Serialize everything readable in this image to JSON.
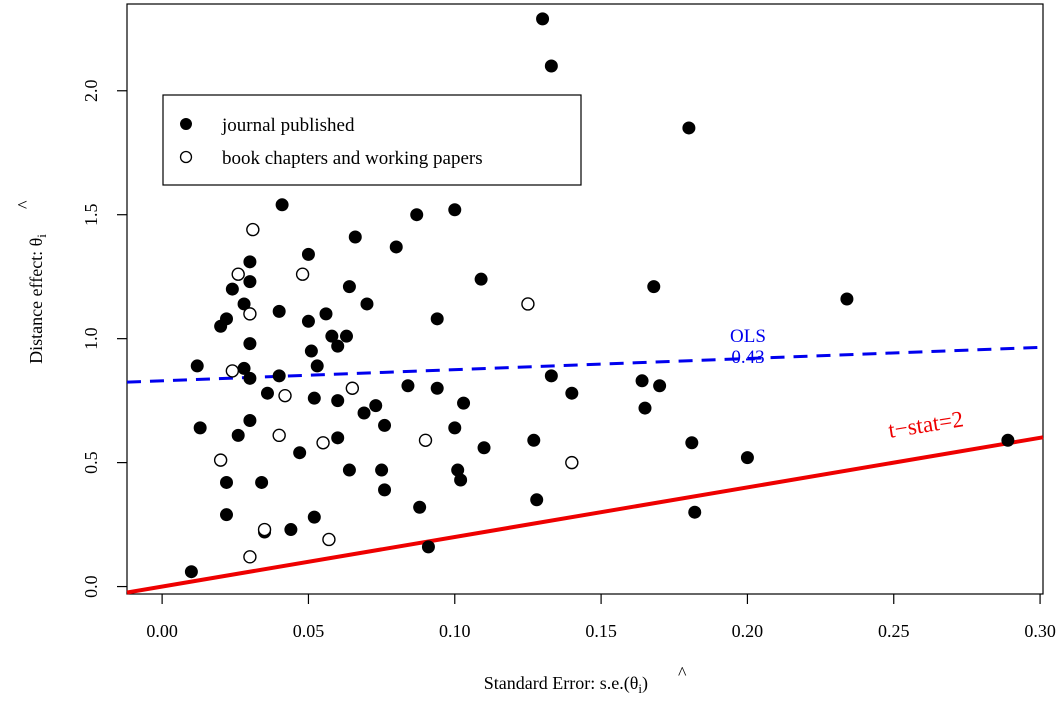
{
  "chart_data": {
    "type": "scatter",
    "xlabel": "Standard Error:   s.e.(",
    "xlabel_theta": "θ",
    "xlabel_hat": "^",
    "xlabel_sub": "i",
    "xlabel_close": ")",
    "ylabel": "Distance effect:  ",
    "ylabel_theta": "θ",
    "ylabel_hat": "^",
    "ylabel_sub": "i",
    "xlim": [
      -0.012,
      0.301
    ],
    "ylim": [
      -0.03,
      2.35
    ],
    "x_ticks": [
      0.0,
      0.05,
      0.1,
      0.15,
      0.2,
      0.25,
      0.3
    ],
    "x_tick_labels": [
      "0.00",
      "0.05",
      "0.10",
      "0.15",
      "0.20",
      "0.25",
      "0.30"
    ],
    "y_ticks": [
      0.0,
      0.5,
      1.0,
      1.5,
      2.0
    ],
    "y_tick_labels": [
      "0.0",
      "0.5",
      "1.0",
      "1.5",
      "2.0"
    ],
    "grid": false,
    "legend": {
      "position": "top-left",
      "entries": [
        {
          "label": "journal published",
          "marker": "filled-circle"
        },
        {
          "label": "book chapters and working papers",
          "marker": "open-circle"
        }
      ]
    },
    "lines": [
      {
        "name": "OLS",
        "label": "OLS",
        "sublabel": "0.43",
        "style": "dashed",
        "color": "#0000ee",
        "intercept": 0.83,
        "slope": 0.45
      },
      {
        "name": "t-stat=2",
        "label": "t−stat=2",
        "style": "solid",
        "color": "#ee0000",
        "intercept": 0.0,
        "slope": 2.0
      }
    ],
    "series": [
      {
        "name": "journal published",
        "marker": "filled",
        "points": [
          [
            0.13,
            2.29
          ],
          [
            0.133,
            2.1
          ],
          [
            0.18,
            1.85
          ],
          [
            0.041,
            1.54
          ],
          [
            0.1,
            1.52
          ],
          [
            0.087,
            1.5
          ],
          [
            0.08,
            1.37
          ],
          [
            0.066,
            1.41
          ],
          [
            0.05,
            1.34
          ],
          [
            0.03,
            1.31
          ],
          [
            0.03,
            1.23
          ],
          [
            0.024,
            1.2
          ],
          [
            0.028,
            1.14
          ],
          [
            0.022,
            1.08
          ],
          [
            0.02,
            1.05
          ],
          [
            0.04,
            1.11
          ],
          [
            0.05,
            1.07
          ],
          [
            0.056,
            1.1
          ],
          [
            0.064,
            1.21
          ],
          [
            0.07,
            1.14
          ],
          [
            0.058,
            1.01
          ],
          [
            0.063,
            1.01
          ],
          [
            0.06,
            0.97
          ],
          [
            0.051,
            0.95
          ],
          [
            0.03,
            0.98
          ],
          [
            0.012,
            0.89
          ],
          [
            0.028,
            0.88
          ],
          [
            0.03,
            0.84
          ],
          [
            0.04,
            0.85
          ],
          [
            0.053,
            0.89
          ],
          [
            0.036,
            0.78
          ],
          [
            0.052,
            0.76
          ],
          [
            0.06,
            0.75
          ],
          [
            0.073,
            0.73
          ],
          [
            0.069,
            0.7
          ],
          [
            0.076,
            0.65
          ],
          [
            0.084,
            0.81
          ],
          [
            0.094,
            0.8
          ],
          [
            0.094,
            1.08
          ],
          [
            0.109,
            1.24
          ],
          [
            0.133,
            0.85
          ],
          [
            0.14,
            0.78
          ],
          [
            0.103,
            0.74
          ],
          [
            0.013,
            0.64
          ],
          [
            0.026,
            0.61
          ],
          [
            0.03,
            0.67
          ],
          [
            0.06,
            0.6
          ],
          [
            0.047,
            0.54
          ],
          [
            0.064,
            0.47
          ],
          [
            0.075,
            0.47
          ],
          [
            0.1,
            0.64
          ],
          [
            0.101,
            0.47
          ],
          [
            0.102,
            0.43
          ],
          [
            0.11,
            0.56
          ],
          [
            0.127,
            0.59
          ],
          [
            0.164,
            0.83
          ],
          [
            0.165,
            0.72
          ],
          [
            0.17,
            0.81
          ],
          [
            0.168,
            1.21
          ],
          [
            0.234,
            1.16
          ],
          [
            0.181,
            0.58
          ],
          [
            0.2,
            0.52
          ],
          [
            0.289,
            0.59
          ],
          [
            0.022,
            0.42
          ],
          [
            0.034,
            0.42
          ],
          [
            0.076,
            0.39
          ],
          [
            0.022,
            0.29
          ],
          [
            0.035,
            0.22
          ],
          [
            0.044,
            0.23
          ],
          [
            0.052,
            0.28
          ],
          [
            0.088,
            0.32
          ],
          [
            0.128,
            0.35
          ],
          [
            0.182,
            0.3
          ],
          [
            0.091,
            0.16
          ],
          [
            0.01,
            0.06
          ]
        ]
      },
      {
        "name": "book chapters and working papers",
        "marker": "open",
        "points": [
          [
            0.031,
            1.44
          ],
          [
            0.026,
            1.26
          ],
          [
            0.048,
            1.26
          ],
          [
            0.03,
            1.1
          ],
          [
            0.125,
            1.14
          ],
          [
            0.024,
            0.87
          ],
          [
            0.042,
            0.77
          ],
          [
            0.065,
            0.8
          ],
          [
            0.04,
            0.61
          ],
          [
            0.055,
            0.58
          ],
          [
            0.09,
            0.59
          ],
          [
            0.02,
            0.51
          ],
          [
            0.14,
            0.5
          ],
          [
            0.035,
            0.23
          ],
          [
            0.057,
            0.19
          ],
          [
            0.03,
            0.12
          ]
        ]
      }
    ]
  }
}
